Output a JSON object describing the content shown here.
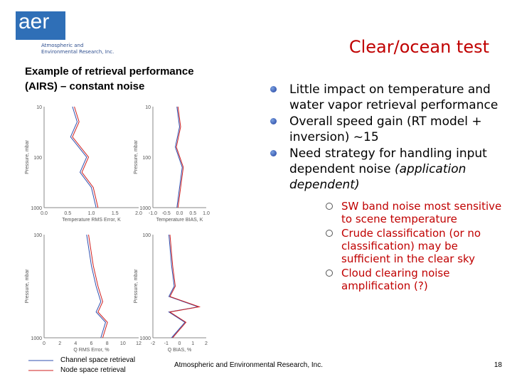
{
  "header": {
    "logo_text": "aer",
    "logo_subtitle": [
      "Atmospheric and",
      "Environmental Research, Inc."
    ],
    "title": "Clear/ocean test"
  },
  "left_heading": [
    "Example of retrieval performance",
    "(AIRS) – constant noise"
  ],
  "plots": [
    {
      "y_label": "Pressure, mbar",
      "x_label": "Temperature RMS Error, K",
      "yticks": [
        "10",
        "100",
        "1000"
      ],
      "xticks": [
        "0.0",
        "0.5",
        "1.0",
        "1.5",
        "2.0"
      ]
    },
    {
      "y_label": "Pressure, mbar",
      "x_label": "Temperature BIAS, K",
      "yticks": [
        "10",
        "100",
        "1000"
      ],
      "xticks": [
        "-1.0",
        "-0.5",
        "0.0",
        "0.5",
        "1.0"
      ]
    },
    {
      "y_label": "Pressure, mbar",
      "x_label": "Q RMS Error, %",
      "yticks": [
        "100",
        "1000"
      ],
      "xticks": [
        "0",
        "2",
        "4",
        "6",
        "8",
        "10",
        "12"
      ]
    },
    {
      "y_label": "Pressure, mbar",
      "x_label": "Q BIAS, %",
      "yticks": [
        "100",
        "1000"
      ],
      "xticks": [
        "-2",
        "-1",
        "0",
        "1",
        "2"
      ]
    }
  ],
  "bullets": [
    {
      "text": "Little impact on temperature and water vapor retrieval performance"
    },
    {
      "text": "Overall speed gain (RT model + inversion) ~15"
    },
    {
      "text": "Need strategy for handling input dependent noise",
      "emphasis": "(application dependent)",
      "subs": [
        "SW band noise most sensitive to scene temperature",
        "Crude classification (or no classification) may be sufficient in the clear sky",
        "Cloud clearing noise amplification (?)"
      ]
    }
  ],
  "legend": [
    {
      "name": "Channel space retrieval",
      "color": "#3050b0"
    },
    {
      "name": "Node space retrieval",
      "color": "#d02020"
    }
  ],
  "footer": "Atmospheric and Environmental Research, Inc.",
  "page_number": "18"
}
